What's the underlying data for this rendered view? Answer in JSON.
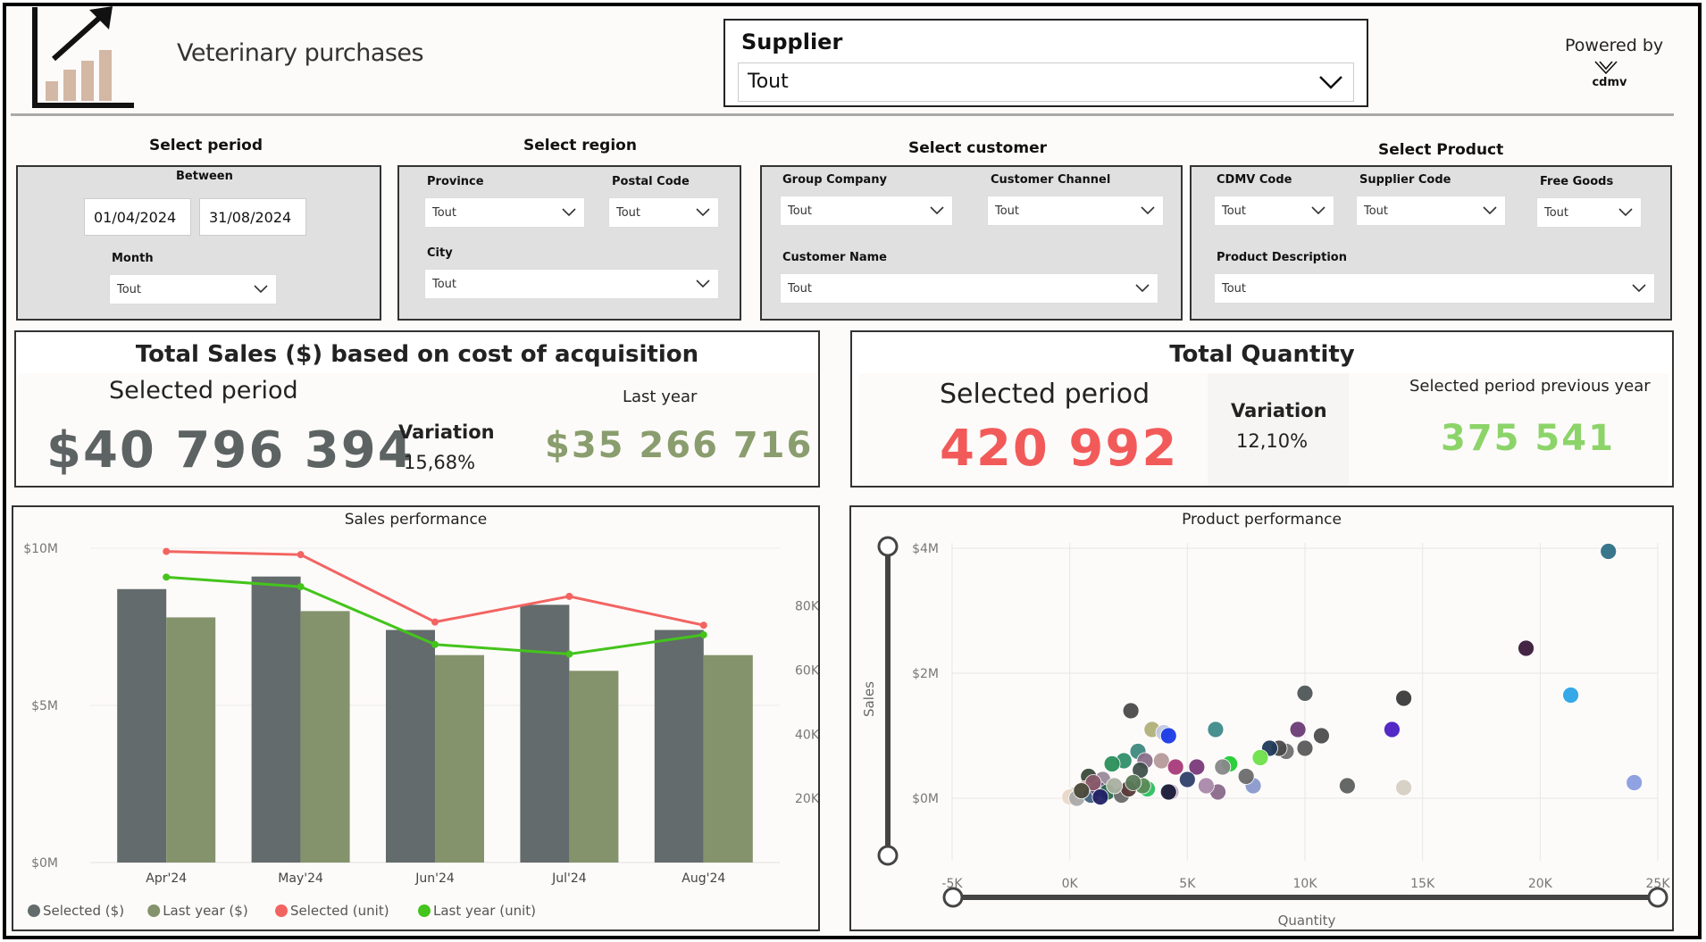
{
  "header": {
    "title": "Veterinary purchases",
    "supplier_label": "Supplier",
    "supplier_value": "Tout",
    "powered_by": "Powered by",
    "brand": "cdmv"
  },
  "filters": {
    "period": {
      "title": "Select period",
      "between_label": "Between",
      "start_date": "01/04/2024",
      "end_date": "31/08/2024",
      "month_label": "Month",
      "month_value": "Tout"
    },
    "region": {
      "title": "Select region",
      "province_label": "Province",
      "province_value": "Tout",
      "postal_label": "Postal Code",
      "postal_value": "Tout",
      "city_label": "City",
      "city_value": "Tout"
    },
    "customer": {
      "title": "Select customer",
      "group_label": "Group Company",
      "group_value": "Tout",
      "channel_label": "Customer Channel",
      "channel_value": "Tout",
      "name_label": "Customer Name",
      "name_value": "Tout"
    },
    "product": {
      "title": "Select Product",
      "cdmv_label": "CDMV Code",
      "cdmv_value": "Tout",
      "supplier_code_label": "Supplier Code",
      "supplier_code_value": "Tout",
      "free_label": "Free Goods",
      "free_value": "Tout",
      "desc_label": "Product Description",
      "desc_value": "Tout"
    }
  },
  "kpi_sales": {
    "title": "Total Sales ($) based on cost of acquisition",
    "selected_label": "Selected period",
    "selected_value": "$40 796 394",
    "variation_label": "Variation",
    "variation_value": "15,68%",
    "last_label": "Last year",
    "last_value": "$35 266 716"
  },
  "kpi_qty": {
    "title": "Total Quantity",
    "selected_label": "Selected period",
    "selected_value": "420 992",
    "variation_label": "Variation",
    "variation_value": "12,10%",
    "prev_label": "Selected period previous year",
    "prev_value": "375 541"
  },
  "colors": {
    "selected_bar": "#636b6c",
    "last_year_bar": "#84936c",
    "selected_unit": "#f26462",
    "last_year_unit": "#44c41c",
    "kpi_red": "#f25a5a",
    "kpi_green": "#8cd46a",
    "kpi_olive": "#8a9d6e",
    "kpi_gray": "#5d6363"
  },
  "chart_data": [
    {
      "type": "bar",
      "title": "Sales performance",
      "categories": [
        "Apr'24",
        "May'24",
        "Jun'24",
        "Jul'24",
        "Aug'24"
      ],
      "series": [
        {
          "name": "Selected ($)",
          "kind": "bar",
          "axis": "left",
          "values": [
            8.7,
            9.1,
            7.4,
            8.2,
            7.4
          ]
        },
        {
          "name": "Last year ($)",
          "kind": "bar",
          "axis": "left",
          "values": [
            7.8,
            8.0,
            6.6,
            6.1,
            6.6
          ]
        },
        {
          "name": "Selected (unit)",
          "kind": "line",
          "axis": "right",
          "values": [
            97000,
            96000,
            75000,
            83000,
            74000
          ]
        },
        {
          "name": "Last year (unit)",
          "kind": "line",
          "axis": "right",
          "values": [
            89000,
            86000,
            68000,
            65000,
            71000
          ]
        }
      ],
      "y_left": {
        "ticks": [
          "$0M",
          "$5M",
          "$10M"
        ],
        "range": [
          0,
          10
        ]
      },
      "y_right": {
        "ticks": [
          "20K",
          "40K",
          "60K",
          "80K"
        ],
        "range": [
          0,
          98000
        ]
      },
      "legend": "bottom-left"
    },
    {
      "type": "scatter",
      "title": "Product performance",
      "xlabel": "Quantity",
      "ylabel": "Sales",
      "x_ticks": [
        "-5K",
        "0K",
        "5K",
        "10K",
        "15K",
        "20K",
        "25K"
      ],
      "y_ticks": [
        "$0M",
        "$2M",
        "$4M"
      ],
      "xlim": [
        -5000,
        25000
      ],
      "ylim": [
        -1.0,
        4.0
      ],
      "points": [
        [
          22900,
          3.95,
          "#2e6f86"
        ],
        [
          19400,
          2.4,
          "#3a1a3a"
        ],
        [
          21300,
          1.65,
          "#2aa4e6"
        ],
        [
          24000,
          0.25,
          "#8a9de0"
        ],
        [
          14200,
          1.6,
          "#3a3a3a"
        ],
        [
          13700,
          1.1,
          "#4a1fc2"
        ],
        [
          10000,
          1.68,
          "#4f5657"
        ],
        [
          9700,
          1.1,
          "#6a3b75"
        ],
        [
          10700,
          1.0,
          "#4d4d4d"
        ],
        [
          10000,
          0.8,
          "#5a5a5a"
        ],
        [
          9200,
          0.75,
          "#707070"
        ],
        [
          8900,
          0.8,
          "#4a4a4a"
        ],
        [
          8500,
          0.8,
          "#1f3a5a"
        ],
        [
          11800,
          0.2,
          "#5e6060"
        ],
        [
          14200,
          0.17,
          "#d6cfc2"
        ],
        [
          7800,
          0.2,
          "#8a99cc"
        ],
        [
          6200,
          1.1,
          "#3f8a8a"
        ],
        [
          7500,
          0.35,
          "#6b6b6b"
        ],
        [
          8100,
          0.65,
          "#6de04a"
        ],
        [
          6800,
          0.55,
          "#22cc33"
        ],
        [
          2600,
          1.4,
          "#4a4a4a"
        ],
        [
          3500,
          1.1,
          "#b0b07a"
        ],
        [
          4000,
          1.05,
          "#c0c8e0"
        ],
        [
          4200,
          1.0,
          "#1a3ae6"
        ],
        [
          2900,
          0.75,
          "#3e8a80"
        ],
        [
          2300,
          0.6,
          "#2f8f6a"
        ],
        [
          3200,
          0.6,
          "#8a6f8a"
        ],
        [
          3900,
          0.6,
          "#b59a9a"
        ],
        [
          4500,
          0.5,
          "#a83a7a"
        ],
        [
          5400,
          0.5,
          "#7a3a7a"
        ],
        [
          5000,
          0.3,
          "#2f3f6a"
        ],
        [
          6500,
          0.5,
          "#888"
        ],
        [
          4300,
          0.1,
          "#c0a0c0"
        ],
        [
          4200,
          0.1,
          "#1a1a3a"
        ],
        [
          3300,
          0.15,
          "#2cc060"
        ],
        [
          3100,
          0.2,
          "#5a8a5a"
        ],
        [
          6300,
          0.1,
          "#8a6a8a"
        ],
        [
          5800,
          0.2,
          "#aa88aa"
        ],
        [
          3000,
          0.45,
          "#40504a"
        ],
        [
          1800,
          0.55,
          "#2a8f5a"
        ],
        [
          1400,
          0.3,
          "#9a8a9a"
        ],
        [
          800,
          0.35,
          "#3a4a3a"
        ],
        [
          600,
          0.15,
          "#d0b0a0"
        ],
        [
          200,
          0.05,
          "#ccc"
        ],
        [
          0,
          0.02,
          "#e8d8c8"
        ],
        [
          300,
          0.0,
          "#aaa"
        ],
        [
          900,
          0.05,
          "#406080"
        ],
        [
          1200,
          0.15,
          "#5e4a7a"
        ],
        [
          1600,
          0.1,
          "#2a6a4a"
        ],
        [
          2200,
          0.05,
          "#6a6a6a"
        ],
        [
          2500,
          0.15,
          "#5a3a3a"
        ],
        [
          1000,
          0.25,
          "#8a5a6a"
        ],
        [
          1900,
          0.2,
          "#aab0a0"
        ],
        [
          2700,
          0.25,
          "#5a7a5a"
        ],
        [
          500,
          0.12,
          "#4a4a3a"
        ],
        [
          1300,
          0.02,
          "#226"
        ]
      ]
    }
  ]
}
